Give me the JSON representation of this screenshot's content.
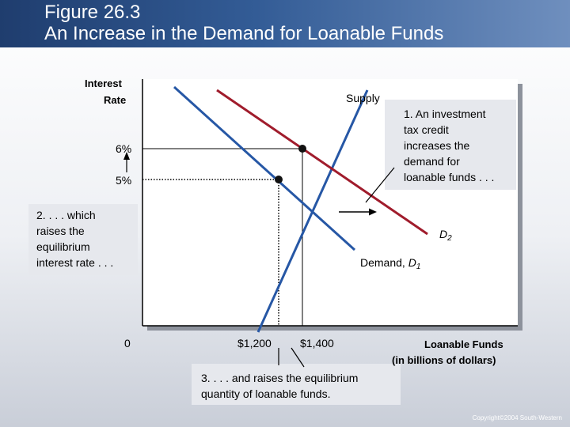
{
  "title": {
    "line1": "Figure 26.3",
    "line2": "An Increase in the Demand for Loanable Funds"
  },
  "axes": {
    "y_label_line1": "Interest",
    "y_label_line2": "Rate",
    "x_label_line1": "Loanable Funds",
    "x_label_line2": "(in billions of dollars)",
    "origin": "0",
    "y_ticks": [
      "6%",
      "5%"
    ],
    "x_ticks": [
      "$1,200",
      "$1,400"
    ]
  },
  "curves": {
    "supply": "Supply",
    "d2_letter": "D",
    "d2_sub": "2",
    "d1_prefix": "Demand, ",
    "d1_letter": "D",
    "d1_sub": "1"
  },
  "callouts": {
    "c1": [
      "1. An investment",
      "tax credit",
      "increases the",
      "demand for",
      "loanable funds . . ."
    ],
    "c2": [
      "2. . . . which",
      "raises the",
      "equilibrium",
      "interest rate . . ."
    ],
    "c3": [
      "3. . . . and raises the equilibrium",
      "quantity of loanable funds."
    ]
  },
  "colors": {
    "supply": "#a01c2c",
    "demand": "#2657a5",
    "title_bg": "#1f3d6e"
  },
  "copyright": "Copyright©2004 South-Western"
}
